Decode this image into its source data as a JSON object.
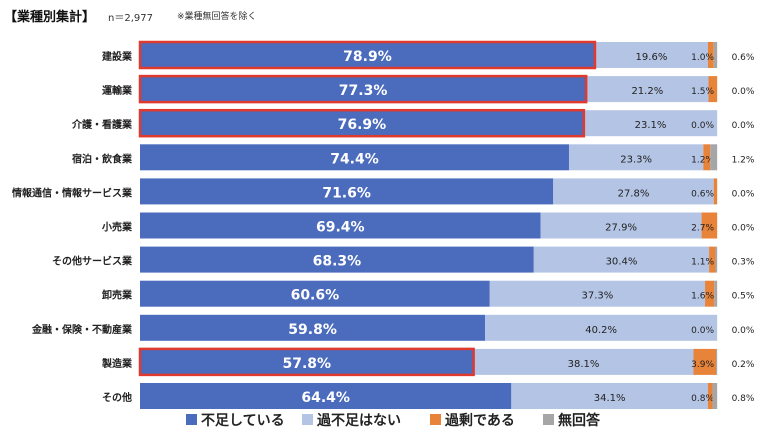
{
  "header": {
    "title": "【業種別集計】",
    "sample": "n＝2,977",
    "note": "※業種無回答を除く"
  },
  "chart_data": {
    "type": "bar",
    "orientation": "horizontal-stacked-100",
    "categories": [
      "建設業",
      "運輸業",
      "介護・看護業",
      "宿泊・飲食業",
      "情報通信・情報サービス業",
      "小売業",
      "その他サービス業",
      "卸売業",
      "金融・保険・不動産業",
      "製造業",
      "その他"
    ],
    "series": [
      {
        "name": "不足している",
        "color": "#4b6bbd",
        "values": [
          78.9,
          77.3,
          76.9,
          74.4,
          71.6,
          69.4,
          68.3,
          60.6,
          59.8,
          57.8,
          64.4
        ],
        "labels": [
          "78.9%",
          "77.3%",
          "76.9%",
          "74.4%",
          "71.6%",
          "69.4%",
          "68.3%",
          "60.6%",
          "59.8%",
          "57.8%",
          "64.4%"
        ]
      },
      {
        "name": "過不足はない",
        "color": "#b4c4e4",
        "values": [
          19.6,
          21.2,
          23.1,
          23.3,
          27.8,
          27.9,
          30.4,
          37.3,
          40.2,
          38.1,
          34.1
        ],
        "labels": [
          "19.6%",
          "21.2%",
          "23.1%",
          "23.3%",
          "27.8%",
          "27.9%",
          "30.4%",
          "37.3%",
          "40.2%",
          "38.1%",
          "34.1%"
        ]
      },
      {
        "name": "過剰である",
        "color": "#e8833a",
        "values": [
          1.0,
          1.5,
          0.0,
          1.2,
          0.6,
          2.7,
          1.1,
          1.6,
          0.0,
          3.9,
          0.8
        ],
        "labels": [
          "1.0%",
          "1.5%",
          "0.0%",
          "1.2%",
          "0.6%",
          "2.7%",
          "1.1%",
          "1.6%",
          "0.0%",
          "3.9%",
          "0.8%"
        ]
      },
      {
        "name": "無回答",
        "color": "#a6a6a6",
        "values": [
          0.6,
          0.0,
          0.0,
          1.2,
          0.0,
          0.0,
          0.3,
          0.5,
          0.0,
          0.2,
          0.8
        ],
        "labels": [
          "0.6%",
          "0.0%",
          "0.0%",
          "1.2%",
          "0.0%",
          "0.0%",
          "0.3%",
          "0.5%",
          "0.0%",
          "0.2%",
          "0.8%"
        ]
      }
    ],
    "highlighted_categories": [
      "建設業",
      "運輸業",
      "介護・看護業",
      "製造業"
    ],
    "highlight_color": "#e03a2f",
    "legend_position": "bottom",
    "xlim": [
      0,
      100
    ],
    "grid": false
  }
}
